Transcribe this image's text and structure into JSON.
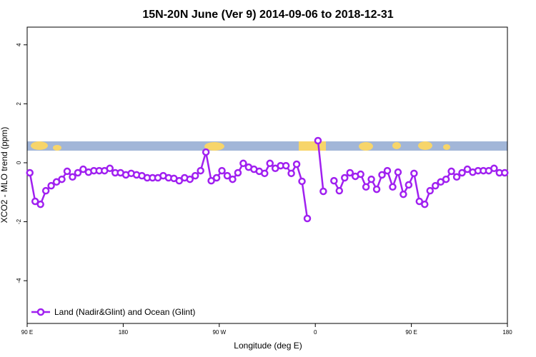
{
  "chart_data": {
    "type": "line",
    "title": "15N-20N June (Ver 9)   2014-09-06 to 2018-12-31",
    "x_label": "Longitude (deg E)",
    "y_label": "XCO2 - MLO trend (ppm)",
    "x": [
      92.5,
      97.5,
      102.5,
      107.5,
      112.5,
      117.5,
      122.5,
      127.5,
      132.5,
      137.5,
      142.5,
      147.5,
      152.5,
      157.5,
      162.5,
      167.5,
      172.5,
      177.5,
      182.5,
      187.5,
      192.5,
      197.5,
      202.5,
      207.5,
      212.5,
      217.5,
      222.5,
      227.5,
      232.5,
      237.5,
      242.5,
      247.5,
      252.5,
      257.5,
      262.5,
      267.5,
      272.5,
      277.5,
      282.5,
      287.5,
      292.5,
      297.5,
      302.5,
      307.5,
      312.5,
      317.5,
      322.5,
      327.5,
      332.5,
      337.5,
      342.5,
      347.5,
      352.5,
      357.5,
      362.5,
      367.5,
      372.5,
      377.5,
      382.5,
      387.5,
      392.5,
      397.5,
      402.5,
      407.5,
      412.5,
      417.5,
      422.5,
      427.5,
      432.5,
      437.5,
      442.5,
      447.5,
      452.5,
      457.5,
      462.5,
      467.5,
      472.5,
      477.5,
      482.5,
      487.5,
      492.5,
      497.5,
      502.5,
      507.5,
      512.5,
      517.5,
      522.5,
      527.5,
      532.5,
      537.5
    ],
    "series": [
      {
        "name": "Land (Nadir&Glint) and Ocean (Glint)",
        "color": "#a020f0",
        "values": [
          -0.34,
          -1.31,
          -1.41,
          -0.95,
          -0.78,
          -0.65,
          -0.56,
          -0.29,
          -0.48,
          -0.34,
          -0.22,
          -0.32,
          -0.27,
          -0.27,
          -0.27,
          -0.19,
          -0.34,
          -0.34,
          -0.41,
          -0.36,
          -0.41,
          -0.44,
          -0.51,
          -0.51,
          -0.51,
          -0.44,
          -0.51,
          -0.53,
          -0.61,
          -0.51,
          -0.56,
          -0.44,
          -0.27,
          0.36,
          -0.61,
          -0.51,
          -0.27,
          -0.44,
          -0.56,
          -0.34,
          -0.02,
          -0.15,
          -0.22,
          -0.29,
          -0.36,
          -0.02,
          -0.19,
          -0.1,
          -0.1,
          -0.36,
          -0.05,
          -0.63,
          -1.89,
          null,
          0.75,
          -0.97,
          null,
          -0.61,
          -0.95,
          -0.51,
          -0.34,
          -0.46,
          -0.39,
          -0.82,
          -0.56,
          -0.9,
          -0.41,
          -0.27,
          -0.82,
          -0.32,
          -1.07,
          -0.75,
          -0.36,
          -1.31,
          -1.41,
          -0.95,
          -0.78,
          -0.65,
          -0.56,
          -0.29,
          -0.48,
          -0.34,
          -0.22,
          -0.32,
          -0.27,
          -0.27,
          -0.27,
          -0.19,
          -0.34,
          -0.34
        ]
      }
    ],
    "xlim": [
      90,
      540
    ],
    "xticks": [
      {
        "value": 90,
        "label": "90 E"
      },
      180,
      {
        "value": 270,
        "label": "90 W"
      },
      {
        "value": 360,
        "label": "0"
      },
      {
        "value": 450,
        "label": "90 E"
      },
      {
        "value": 540,
        "label": "180"
      }
    ],
    "ylim": [
      -5.45,
      4.6
    ],
    "yticks": [
      -4,
      -2,
      0,
      2,
      4
    ],
    "legend": "bottom-left"
  }
}
